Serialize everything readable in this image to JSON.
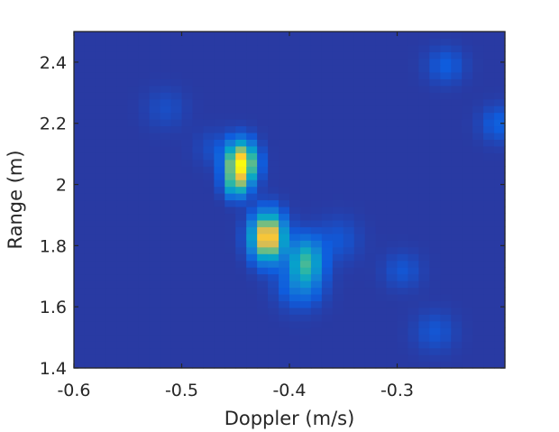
{
  "chart_data": {
    "type": "heatmap",
    "title": "",
    "xlabel": "Doppler (m/s)",
    "ylabel": "Range (m)",
    "xlim": [
      -0.6,
      -0.2
    ],
    "ylim": [
      1.4,
      2.5
    ],
    "xticks": [
      -0.6,
      -0.5,
      -0.4,
      -0.3
    ],
    "xtick_labels": [
      "-0.6",
      "-0.5",
      "-0.4",
      "-0.3"
    ],
    "yticks": [
      1.4,
      1.6,
      1.8,
      2.0,
      2.2,
      2.4
    ],
    "ytick_labels": [
      "1.4",
      "1.6",
      "1.8",
      "2",
      "2.2",
      "2.4"
    ],
    "grid": false,
    "colormap": "parula",
    "background_level": 0.04,
    "cell_size": [
      0.01,
      0.022
    ],
    "peaks": [
      {
        "x": -0.445,
        "y": 2.07,
        "amp": 0.96,
        "sx": 0.009,
        "sy": 0.045
      },
      {
        "x": -0.45,
        "y": 2.0,
        "amp": 0.35,
        "sx": 0.007,
        "sy": 0.03
      },
      {
        "x": -0.42,
        "y": 1.83,
        "amp": 0.92,
        "sx": 0.01,
        "sy": 0.05
      },
      {
        "x": -0.385,
        "y": 1.75,
        "amp": 0.45,
        "sx": 0.01,
        "sy": 0.05
      },
      {
        "x": -0.39,
        "y": 1.67,
        "amp": 0.14,
        "sx": 0.014,
        "sy": 0.05
      },
      {
        "x": -0.355,
        "y": 1.82,
        "amp": 0.07,
        "sx": 0.014,
        "sy": 0.05
      },
      {
        "x": -0.47,
        "y": 2.12,
        "amp": 0.05,
        "sx": 0.012,
        "sy": 0.04
      },
      {
        "x": -0.515,
        "y": 2.25,
        "amp": 0.05,
        "sx": 0.013,
        "sy": 0.045
      },
      {
        "x": -0.255,
        "y": 2.39,
        "amp": 0.09,
        "sx": 0.012,
        "sy": 0.04
      },
      {
        "x": -0.205,
        "y": 2.2,
        "amp": 0.1,
        "sx": 0.012,
        "sy": 0.04
      },
      {
        "x": -0.295,
        "y": 1.72,
        "amp": 0.07,
        "sx": 0.012,
        "sy": 0.04
      },
      {
        "x": -0.265,
        "y": 1.52,
        "amp": 0.07,
        "sx": 0.013,
        "sy": 0.045
      }
    ],
    "colors": {
      "axis": "#262626",
      "colormap_stops": [
        "#352a87",
        "#0f5cdd",
        "#1481d6",
        "#06a4ca",
        "#2eb7a4",
        "#87bf77",
        "#d1bb59",
        "#fec832",
        "#f9fb0e"
      ]
    }
  }
}
